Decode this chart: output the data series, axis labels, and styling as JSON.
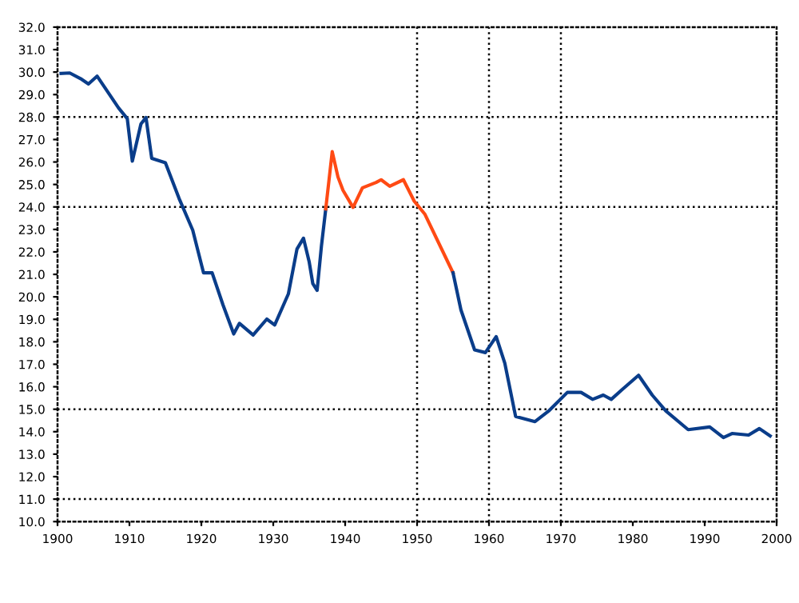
{
  "chart_data": {
    "type": "line",
    "xlim": [
      1900,
      2000
    ],
    "ylim": [
      10,
      32
    ],
    "xticks": [
      1900,
      1910,
      1920,
      1930,
      1940,
      1950,
      1960,
      1970,
      1980,
      1990,
      2000
    ],
    "yticks": [
      {
        "value": 10,
        "label": "10.0"
      },
      {
        "value": 11,
        "label": "11.0"
      },
      {
        "value": 12,
        "label": "12.0"
      },
      {
        "value": 13,
        "label": "13.0"
      },
      {
        "value": 14,
        "label": "14.0"
      },
      {
        "value": 15,
        "label": "15.0"
      },
      {
        "value": 16,
        "label": "16.0"
      },
      {
        "value": 17,
        "label": "17.0"
      },
      {
        "value": 18,
        "label": "18.0"
      },
      {
        "value": 19,
        "label": "19.0"
      },
      {
        "value": 20,
        "label": "20.0"
      },
      {
        "value": 21,
        "label": "21.0"
      },
      {
        "value": 22,
        "label": "22.0"
      },
      {
        "value": 23,
        "label": "23.0"
      },
      {
        "value": 24,
        "label": "24.0"
      },
      {
        "value": 25,
        "label": "25.0"
      },
      {
        "value": 26,
        "label": "26.0"
      },
      {
        "value": 27,
        "label": "27.0"
      },
      {
        "value": 28,
        "label": "28.0"
      },
      {
        "value": 29,
        "label": "29.0"
      },
      {
        "value": 30,
        "label": "30.0"
      },
      {
        "value": 31,
        "label": "31.0"
      },
      {
        "value": 32,
        "label": "32.0"
      }
    ],
    "grid": false,
    "marker": "none",
    "line_style": "solid",
    "ref_lines": [
      {
        "axis": "y",
        "value": 28
      },
      {
        "axis": "y",
        "value": 24
      },
      {
        "axis": "y",
        "value": 15
      },
      {
        "axis": "y",
        "value": 11
      },
      {
        "axis": "x",
        "value": 1950
      },
      {
        "axis": "x",
        "value": 1960
      },
      {
        "axis": "x",
        "value": 1970
      }
    ],
    "series": [
      {
        "color": "#0a3d8a",
        "x": [
          1900.5,
          1901.7,
          1903.2,
          1904.3,
          1905.5,
          1907.0,
          1908.5,
          1909.7,
          1910.4,
          1911.6,
          1912.3,
          1913.1,
          1915.0,
          1916.9,
          1918.8,
          1920.3,
          1921.5,
          1923.0,
          1924.5,
          1925.3,
          1927.2,
          1929.1,
          1930.2,
          1932.1,
          1933.3,
          1934.2,
          1935.0,
          1935.5,
          1936.1,
          1936.7,
          1937.3
        ],
        "values": [
          29.94,
          29.96,
          29.71,
          29.47,
          29.82,
          29.11,
          28.4,
          27.93,
          26.04,
          27.69,
          27.98,
          26.16,
          25.97,
          24.38,
          22.97,
          21.07,
          21.07,
          19.65,
          18.35,
          18.82,
          18.3,
          19.01,
          18.75,
          20.13,
          22.13,
          22.61,
          21.55,
          20.59,
          20.29,
          22.26,
          23.91
        ]
      },
      {
        "color": "#ff4a14",
        "x": [
          1937.3,
          1938.2,
          1939.0,
          1939.7,
          1941.1,
          1942.4,
          1944.3,
          1945.0,
          1946.2,
          1948.1,
          1949.6,
          1951.1,
          1955.0
        ],
        "values": [
          23.91,
          26.46,
          25.33,
          24.74,
          23.98,
          24.85,
          25.09,
          25.21,
          24.92,
          25.21,
          24.26,
          23.67,
          21.07
        ]
      },
      {
        "color": "#0a3d8a",
        "x": [
          1955.0,
          1956.1,
          1958.0,
          1959.5,
          1961.0,
          1962.2,
          1963.7,
          1966.4,
          1968.3,
          1970.9,
          1972.8,
          1974.4,
          1975.9,
          1977.0,
          1978.5,
          1980.8,
          1982.7,
          1984.6,
          1987.7,
          1990.7,
          1992.6,
          1993.8,
          1996.1,
          1997.6,
          1999.1
        ],
        "values": [
          21.07,
          19.42,
          17.64,
          17.52,
          18.23,
          17.05,
          14.68,
          14.45,
          14.92,
          15.75,
          15.75,
          15.44,
          15.63,
          15.44,
          15.87,
          16.51,
          15.63,
          14.92,
          14.09,
          14.21,
          13.74,
          13.92,
          13.85,
          14.14,
          13.81
        ]
      }
    ]
  }
}
